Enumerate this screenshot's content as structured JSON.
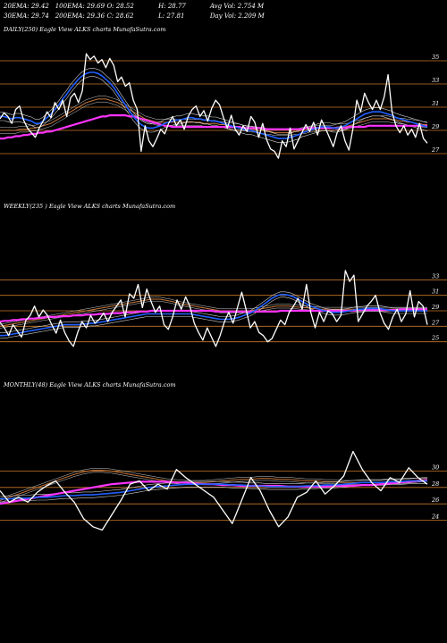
{
  "stats": {
    "row1": [
      "20EMA: 29.42",
      "100EMA: 29.69",
      "O: 28.52",
      "H: 28.77",
      "Avg Vol: 2.754  M"
    ],
    "row2": [
      "30EMA: 29.74",
      "200EMA: 29.36",
      "C: 28.62",
      "L: 27.81",
      "Day Vol: 2.209 M"
    ]
  },
  "colors": {
    "background": "#000000",
    "price": "#ffffff",
    "ema_fast": "#2060ff",
    "ema_mid": "#ff33ff",
    "ema_slow": "#c8783c",
    "grid": "#c87828",
    "band": "#d0d0d0"
  },
  "chart_data": [
    {
      "type": "line",
      "label": "DAILY(250) Eagle  View ALKS charts MunafaSutra.com",
      "y_ticks": [
        27,
        29,
        31,
        33,
        35
      ],
      "ylim": [
        26,
        36
      ],
      "grid": true,
      "price": [
        30,
        30.5,
        30.2,
        29.6,
        30.8,
        31.1,
        29.9,
        29.2,
        28.8,
        28.4,
        29.2,
        29.8,
        30.6,
        30.1,
        31.4,
        30.8,
        31.6,
        30.2,
        31.8,
        32.2,
        31.4,
        32.4,
        35.6,
        35.1,
        35.4,
        34.8,
        35.1,
        34.4,
        35.2,
        34.6,
        33.2,
        33.6,
        32.8,
        33.1,
        31.6,
        30.8,
        27.2,
        29.4,
        28.1,
        27.6,
        28.3,
        29.1,
        28.7,
        29.6,
        30.2,
        29.4,
        29.9,
        29.1,
        30.2,
        30.8,
        31.1,
        30.2,
        30.7,
        29.8,
        30.9,
        31.6,
        31.2,
        30.1,
        29.2,
        30.3,
        29.1,
        28.6,
        29.4,
        28.9,
        30.2,
        29.7,
        28.4,
        29.6,
        28.2,
        27.4,
        27.2,
        26.6,
        28.1,
        27.6,
        29.2,
        27.4,
        28.1,
        28.8,
        29.5,
        28.9,
        29.7,
        28.6,
        29.9,
        29.2,
        28.4,
        27.6,
        28.8,
        29.4,
        28.1,
        27.3,
        29.1,
        31.6,
        30.6,
        32.2,
        31.4,
        30.8,
        31.6,
        30.8,
        31.9,
        33.8,
        30.6,
        29.4,
        28.8,
        29.4,
        28.6,
        29.1,
        28.4,
        29.6,
        28.3,
        27.9
      ],
      "ema_fast": [
        30.2,
        30.2,
        30.1,
        30.0,
        30.1,
        30.1,
        30.0,
        29.9,
        29.8,
        29.6,
        29.6,
        29.8,
        30.1,
        30.4,
        30.8,
        31.2,
        31.7,
        32.1,
        32.6,
        33.0,
        33.4,
        33.7,
        33.9,
        34.0,
        34.0,
        33.9,
        33.7,
        33.4,
        33.1,
        32.7,
        32.2,
        31.7,
        31.2,
        30.7,
        30.2,
        29.8,
        29.5,
        29.3,
        29.2,
        29.2,
        29.3,
        29.4,
        29.6,
        29.7,
        29.8,
        29.9,
        29.9,
        30.0,
        30.1,
        30.1,
        30.0,
        30.0,
        29.9,
        29.9,
        29.8,
        29.8,
        29.7,
        29.6,
        29.5,
        29.4,
        29.3,
        29.2,
        29.1,
        29.0,
        29.0,
        28.9,
        28.8,
        28.7,
        28.6,
        28.5,
        28.4,
        28.3,
        28.3,
        28.3,
        28.4,
        28.5,
        28.6,
        28.8,
        28.9,
        29.0,
        29.1,
        29.2,
        29.3,
        29.3,
        29.3,
        29.2,
        29.2,
        29.3,
        29.4,
        29.6,
        29.8,
        30.0,
        30.2,
        30.4,
        30.5,
        30.6,
        30.6,
        30.6,
        30.5,
        30.4,
        30.3,
        30.1,
        30.0,
        29.9,
        29.8,
        29.7,
        29.6,
        29.5,
        29.4,
        29.3
      ],
      "ema_mid": [
        28.3,
        28.3,
        28.4,
        28.4,
        28.5,
        28.5,
        28.6,
        28.6,
        28.7,
        28.7,
        28.8,
        28.8,
        28.9,
        28.9,
        29.0,
        29.1,
        29.2,
        29.3,
        29.4,
        29.5,
        29.6,
        29.7,
        29.8,
        29.9,
        30.0,
        30.1,
        30.2,
        30.2,
        30.3,
        30.3,
        30.3,
        30.3,
        30.3,
        30.2,
        30.2,
        30.1,
        30.0,
        29.9,
        29.8,
        29.7,
        29.6,
        29.5,
        29.4,
        29.4,
        29.3,
        29.3,
        29.3,
        29.3,
        29.3,
        29.3,
        29.3,
        29.3,
        29.3,
        29.3,
        29.3,
        29.3,
        29.3,
        29.3,
        29.3,
        29.3,
        29.3,
        29.3,
        29.2,
        29.2,
        29.2,
        29.2,
        29.2,
        29.2,
        29.1,
        29.1,
        29.1,
        29.1,
        29.1,
        29.1,
        29.1,
        29.1,
        29.1,
        29.1,
        29.2,
        29.2,
        29.2,
        29.2,
        29.2,
        29.2,
        29.2,
        29.2,
        29.2,
        29.2,
        29.2,
        29.3,
        29.3,
        29.3,
        29.3,
        29.3,
        29.4,
        29.4,
        29.4,
        29.4,
        29.4,
        29.4,
        29.4,
        29.4,
        29.4,
        29.4,
        29.4,
        29.4,
        29.4,
        29.4,
        29.4,
        29.4
      ],
      "ema_slow": [
        29.0,
        29.0,
        29.0,
        29.0,
        29.0,
        29.1,
        29.1,
        29.1,
        29.2,
        29.2,
        29.3,
        29.4,
        29.5,
        29.6,
        29.8,
        30.0,
        30.2,
        30.4,
        30.6,
        30.8,
        31.0,
        31.2,
        31.4,
        31.5,
        31.6,
        31.7,
        31.7,
        31.7,
        31.6,
        31.5,
        31.4,
        31.2,
        31.0,
        30.8,
        30.6,
        30.4,
        30.2,
        30.0,
        29.9,
        29.8,
        29.7,
        29.7,
        29.7,
        29.7,
        29.7,
        29.7,
        29.7,
        29.7,
        29.7,
        29.7,
        29.7,
        29.7,
        29.6,
        29.6,
        29.6,
        29.6,
        29.5,
        29.5,
        29.4,
        29.4,
        29.3,
        29.3,
        29.2,
        29.2,
        29.1,
        29.1,
        29.0,
        29.0,
        28.9,
        28.9,
        28.8,
        28.8,
        28.8,
        28.8,
        28.8,
        28.9,
        28.9,
        29.0,
        29.0,
        29.1,
        29.1,
        29.2,
        29.2,
        29.2,
        29.2,
        29.2,
        29.3,
        29.3,
        29.3,
        29.4,
        29.5,
        29.6,
        29.7,
        29.8,
        29.9,
        30.0,
        30.0,
        30.0,
        30.0,
        30.0,
        29.9,
        29.9,
        29.8,
        29.8,
        29.7,
        29.7,
        29.6,
        29.6,
        29.5,
        29.5
      ]
    },
    {
      "type": "line",
      "label": "WEEKLY(235                        ) Eagle  View ALKS charts MunafaSutra.com",
      "y_ticks": [
        25,
        27,
        29,
        31,
        33
      ],
      "ylim": [
        23,
        35
      ],
      "grid": true,
      "price": [
        27.5,
        26.8,
        25.8,
        27.2,
        26.4,
        25.6,
        27.8,
        28.4,
        29.6,
        28.2,
        29.1,
        28.4,
        27.2,
        26.1,
        27.8,
        26.2,
        25.1,
        24.4,
        26.2,
        27.6,
        26.8,
        28.4,
        27.4,
        27.9,
        28.7,
        27.6,
        28.8,
        29.6,
        30.4,
        28.2,
        31.2,
        30.6,
        32.4,
        29.4,
        31.8,
        30.2,
        28.8,
        29.6,
        27.2,
        26.6,
        28.2,
        30.4,
        29.2,
        30.8,
        29.6,
        27.4,
        26.2,
        25.2,
        26.8,
        25.6,
        24.4,
        25.8,
        27.6,
        28.8,
        27.4,
        29.4,
        31.4,
        29.2,
        26.8,
        27.6,
        26.2,
        25.8,
        25.0,
        25.4,
        26.6,
        27.8,
        27.2,
        28.8,
        29.6,
        30.6,
        29.2,
        32.4,
        28.8,
        26.8,
        28.8,
        27.6,
        29.0,
        28.6,
        27.6,
        28.4,
        34.2,
        32.8,
        33.6,
        27.6,
        28.6,
        29.6,
        30.2,
        31.0,
        28.8,
        27.4,
        26.6,
        28.2,
        29.2,
        27.6,
        28.6,
        31.6,
        28.2,
        30.2,
        29.6,
        27.2
      ],
      "ema_fast": [
        25.8,
        25.8,
        25.9,
        26.0,
        26.1,
        26.2,
        26.3,
        26.4,
        26.5,
        26.6,
        26.7,
        26.8,
        26.9,
        27.0,
        27.1,
        27.2,
        27.2,
        27.2,
        27.2,
        27.3,
        27.3,
        27.4,
        27.4,
        27.5,
        27.6,
        27.7,
        27.8,
        27.9,
        28.0,
        28.1,
        28.2,
        28.3,
        28.4,
        28.5,
        28.6,
        28.6,
        28.6,
        28.6,
        28.6,
        28.6,
        28.6,
        28.6,
        28.6,
        28.6,
        28.6,
        28.5,
        28.4,
        28.3,
        28.2,
        28.1,
        28.0,
        27.9,
        27.9,
        27.9,
        28.0,
        28.1,
        28.3,
        28.5,
        28.7,
        29.0,
        29.4,
        29.8,
        30.2,
        30.6,
        30.9,
        31.1,
        31.1,
        31.0,
        30.8,
        30.5,
        30.2,
        29.9,
        29.6,
        29.4,
        29.2,
        29.0,
        28.9,
        28.8,
        28.8,
        28.8,
        28.9,
        29.0,
        29.1,
        29.2,
        29.2,
        29.3,
        29.3,
        29.3,
        29.3,
        29.2,
        29.1,
        29.0,
        29.0,
        29.0,
        29.0,
        29.0,
        29.0,
        29.0,
        29.0,
        29.0
      ],
      "ema_mid": [
        27.6,
        27.7,
        27.7,
        27.8,
        27.8,
        27.9,
        27.9,
        28.0,
        28.0,
        28.1,
        28.1,
        28.2,
        28.2,
        28.2,
        28.3,
        28.3,
        28.3,
        28.4,
        28.4,
        28.4,
        28.5,
        28.5,
        28.5,
        28.6,
        28.6,
        28.6,
        28.7,
        28.7,
        28.7,
        28.8,
        28.8,
        28.8,
        28.9,
        28.9,
        28.9,
        29.0,
        29.0,
        29.0,
        29.0,
        29.0,
        29.0,
        29.0,
        29.0,
        29.0,
        29.0,
        29.0,
        29.0,
        29.0,
        29.0,
        29.0,
        28.9,
        28.9,
        28.9,
        28.9,
        28.9,
        28.9,
        28.9,
        28.9,
        28.9,
        28.9,
        28.9,
        28.9,
        28.9,
        28.9,
        28.9,
        29.0,
        29.0,
        29.0,
        29.0,
        29.0,
        29.0,
        29.0,
        29.0,
        29.0,
        29.0,
        29.0,
        29.0,
        29.0,
        29.0,
        29.0,
        29.0,
        29.0,
        29.0,
        29.1,
        29.1,
        29.1,
        29.1,
        29.1,
        29.1,
        29.1,
        29.1,
        29.1,
        29.1,
        29.2,
        29.2,
        29.2,
        29.2,
        29.2,
        29.2,
        29.2
      ],
      "ema_slow": [
        27.0,
        27.1,
        27.2,
        27.3,
        27.4,
        27.5,
        27.6,
        27.7,
        27.8,
        27.9,
        28.0,
        28.1,
        28.2,
        28.3,
        28.4,
        28.5,
        28.6,
        28.7,
        28.8,
        28.9,
        29.0,
        29.1,
        29.2,
        29.3,
        29.4,
        29.5,
        29.6,
        29.7,
        29.8,
        29.9,
        30.0,
        30.1,
        30.2,
        30.3,
        30.4,
        30.5,
        30.5,
        30.5,
        30.4,
        30.3,
        30.2,
        30.0,
        29.9,
        29.8,
        29.7,
        29.6,
        29.5,
        29.4,
        29.3,
        29.2,
        29.1,
        29.0,
        29.0,
        29.0,
        29.0,
        29.0,
        29.0,
        29.0,
        29.0,
        29.1,
        29.2,
        29.3,
        29.4,
        29.5,
        29.6,
        29.6,
        29.6,
        29.6,
        29.5,
        29.5,
        29.4,
        29.4,
        29.3,
        29.3,
        29.2,
        29.2,
        29.2,
        29.2,
        29.2,
        29.2,
        29.2,
        29.2,
        29.2,
        29.2,
        29.2,
        29.2,
        29.2,
        29.2,
        29.2,
        29.2,
        29.2,
        29.2,
        29.2,
        29.2,
        29.2,
        29.2,
        29.2,
        29.2,
        29.2,
        29.2
      ]
    },
    {
      "type": "line",
      "label": "MONTHLY(48) Eagle  View ALKS charts MunafaSutra.com",
      "y_ticks": [
        24,
        26,
        28,
        30
      ],
      "ylim": [
        21,
        33
      ],
      "grid": true,
      "price": [
        27.6,
        26.2,
        26.8,
        26.2,
        27.4,
        28.2,
        28.8,
        27.4,
        26.2,
        24.2,
        23.2,
        22.8,
        24.6,
        26.4,
        28.4,
        28.8,
        27.6,
        28.4,
        27.8,
        30.2,
        29.2,
        28.4,
        27.6,
        26.8,
        25.2,
        23.6,
        26.4,
        29.2,
        27.6,
        25.2,
        23.2,
        24.4,
        26.8,
        27.4,
        28.8,
        27.2,
        28.2,
        29.4,
        32.4,
        30.2,
        28.6,
        27.6,
        29.2,
        28.6,
        30.4,
        29.2,
        28.4
      ],
      "ema_fast": [
        26.6,
        26.6,
        26.7,
        26.7,
        26.8,
        26.8,
        26.9,
        27.0,
        27.0,
        27.1,
        27.1,
        27.2,
        27.3,
        27.4,
        27.6,
        27.8,
        28.0,
        28.1,
        28.2,
        28.3,
        28.4,
        28.4,
        28.4,
        28.4,
        28.4,
        28.3,
        28.3,
        28.2,
        28.2,
        28.1,
        28.1,
        28.1,
        28.1,
        28.2,
        28.2,
        28.3,
        28.3,
        28.4,
        28.5,
        28.6,
        28.6,
        28.6,
        28.7,
        28.7,
        28.8,
        28.8,
        28.8
      ],
      "ema_mid": [
        26.0,
        26.2,
        26.4,
        26.6,
        26.8,
        27.0,
        27.2,
        27.4,
        27.6,
        27.8,
        28.0,
        28.2,
        28.4,
        28.5,
        28.6,
        28.7,
        28.7,
        28.7,
        28.7,
        28.6,
        28.6,
        28.5,
        28.4,
        28.4,
        28.3,
        28.3,
        28.2,
        28.2,
        28.2,
        28.2,
        28.2,
        28.1,
        28.1,
        28.1,
        28.1,
        28.1,
        28.2,
        28.2,
        28.2,
        28.3,
        28.3,
        28.4,
        28.5,
        28.6,
        28.7,
        28.8,
        28.9
      ],
      "ema_slow": [
        26.4,
        26.8,
        27.2,
        27.6,
        28.0,
        28.4,
        28.8,
        29.2,
        29.6,
        29.9,
        30.1,
        30.1,
        30.0,
        29.8,
        29.6,
        29.4,
        29.2,
        29.0,
        28.8,
        28.7,
        28.6,
        28.6,
        28.6,
        28.7,
        28.8,
        28.9,
        29.0,
        29.0,
        29.1,
        29.1,
        29.0,
        29.0,
        28.9,
        28.8,
        28.8,
        28.7,
        28.7,
        28.6,
        28.6,
        28.6,
        28.6,
        28.6,
        28.7,
        28.7,
        28.8,
        28.9,
        29.0
      ]
    }
  ]
}
